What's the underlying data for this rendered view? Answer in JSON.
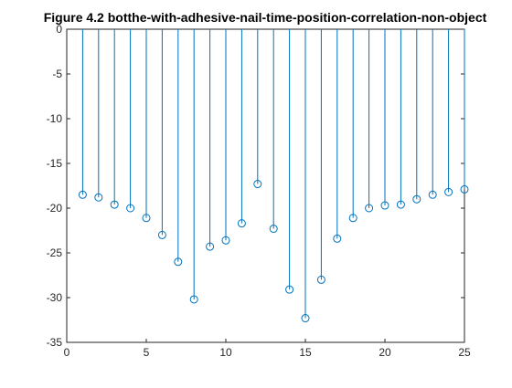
{
  "colors": {
    "series": "#0072BD",
    "axis": "#262626",
    "background": "#ffffff"
  },
  "chart_data": {
    "type": "stem",
    "title": "Figure 4.2 botthe-with-adhesive-nail-time-position-correlation-non-object",
    "xlabel": "",
    "ylabel": "",
    "xlim": [
      0,
      25
    ],
    "ylim": [
      -35,
      0
    ],
    "xticks": [
      0,
      5,
      10,
      15,
      20,
      25
    ],
    "yticks": [
      0,
      -5,
      -10,
      -15,
      -20,
      -25,
      -30,
      -35
    ],
    "baseline": 0,
    "grid": false,
    "legend": "none",
    "box": true,
    "marker": "open-circle",
    "x": [
      1,
      2,
      3,
      4,
      5,
      6,
      7,
      8,
      9,
      10,
      11,
      12,
      13,
      14,
      15,
      16,
      17,
      18,
      19,
      20,
      21,
      22,
      23,
      24,
      25
    ],
    "values": [
      -18.5,
      -18.8,
      -19.6,
      -20.0,
      -21.1,
      -23.0,
      -26.0,
      -30.2,
      -24.3,
      -23.6,
      -21.7,
      -17.3,
      -22.3,
      -29.1,
      -32.3,
      -28.0,
      -23.4,
      -21.1,
      -20.0,
      -19.7,
      -19.6,
      -19.0,
      -18.5,
      -18.2,
      -17.9
    ]
  }
}
